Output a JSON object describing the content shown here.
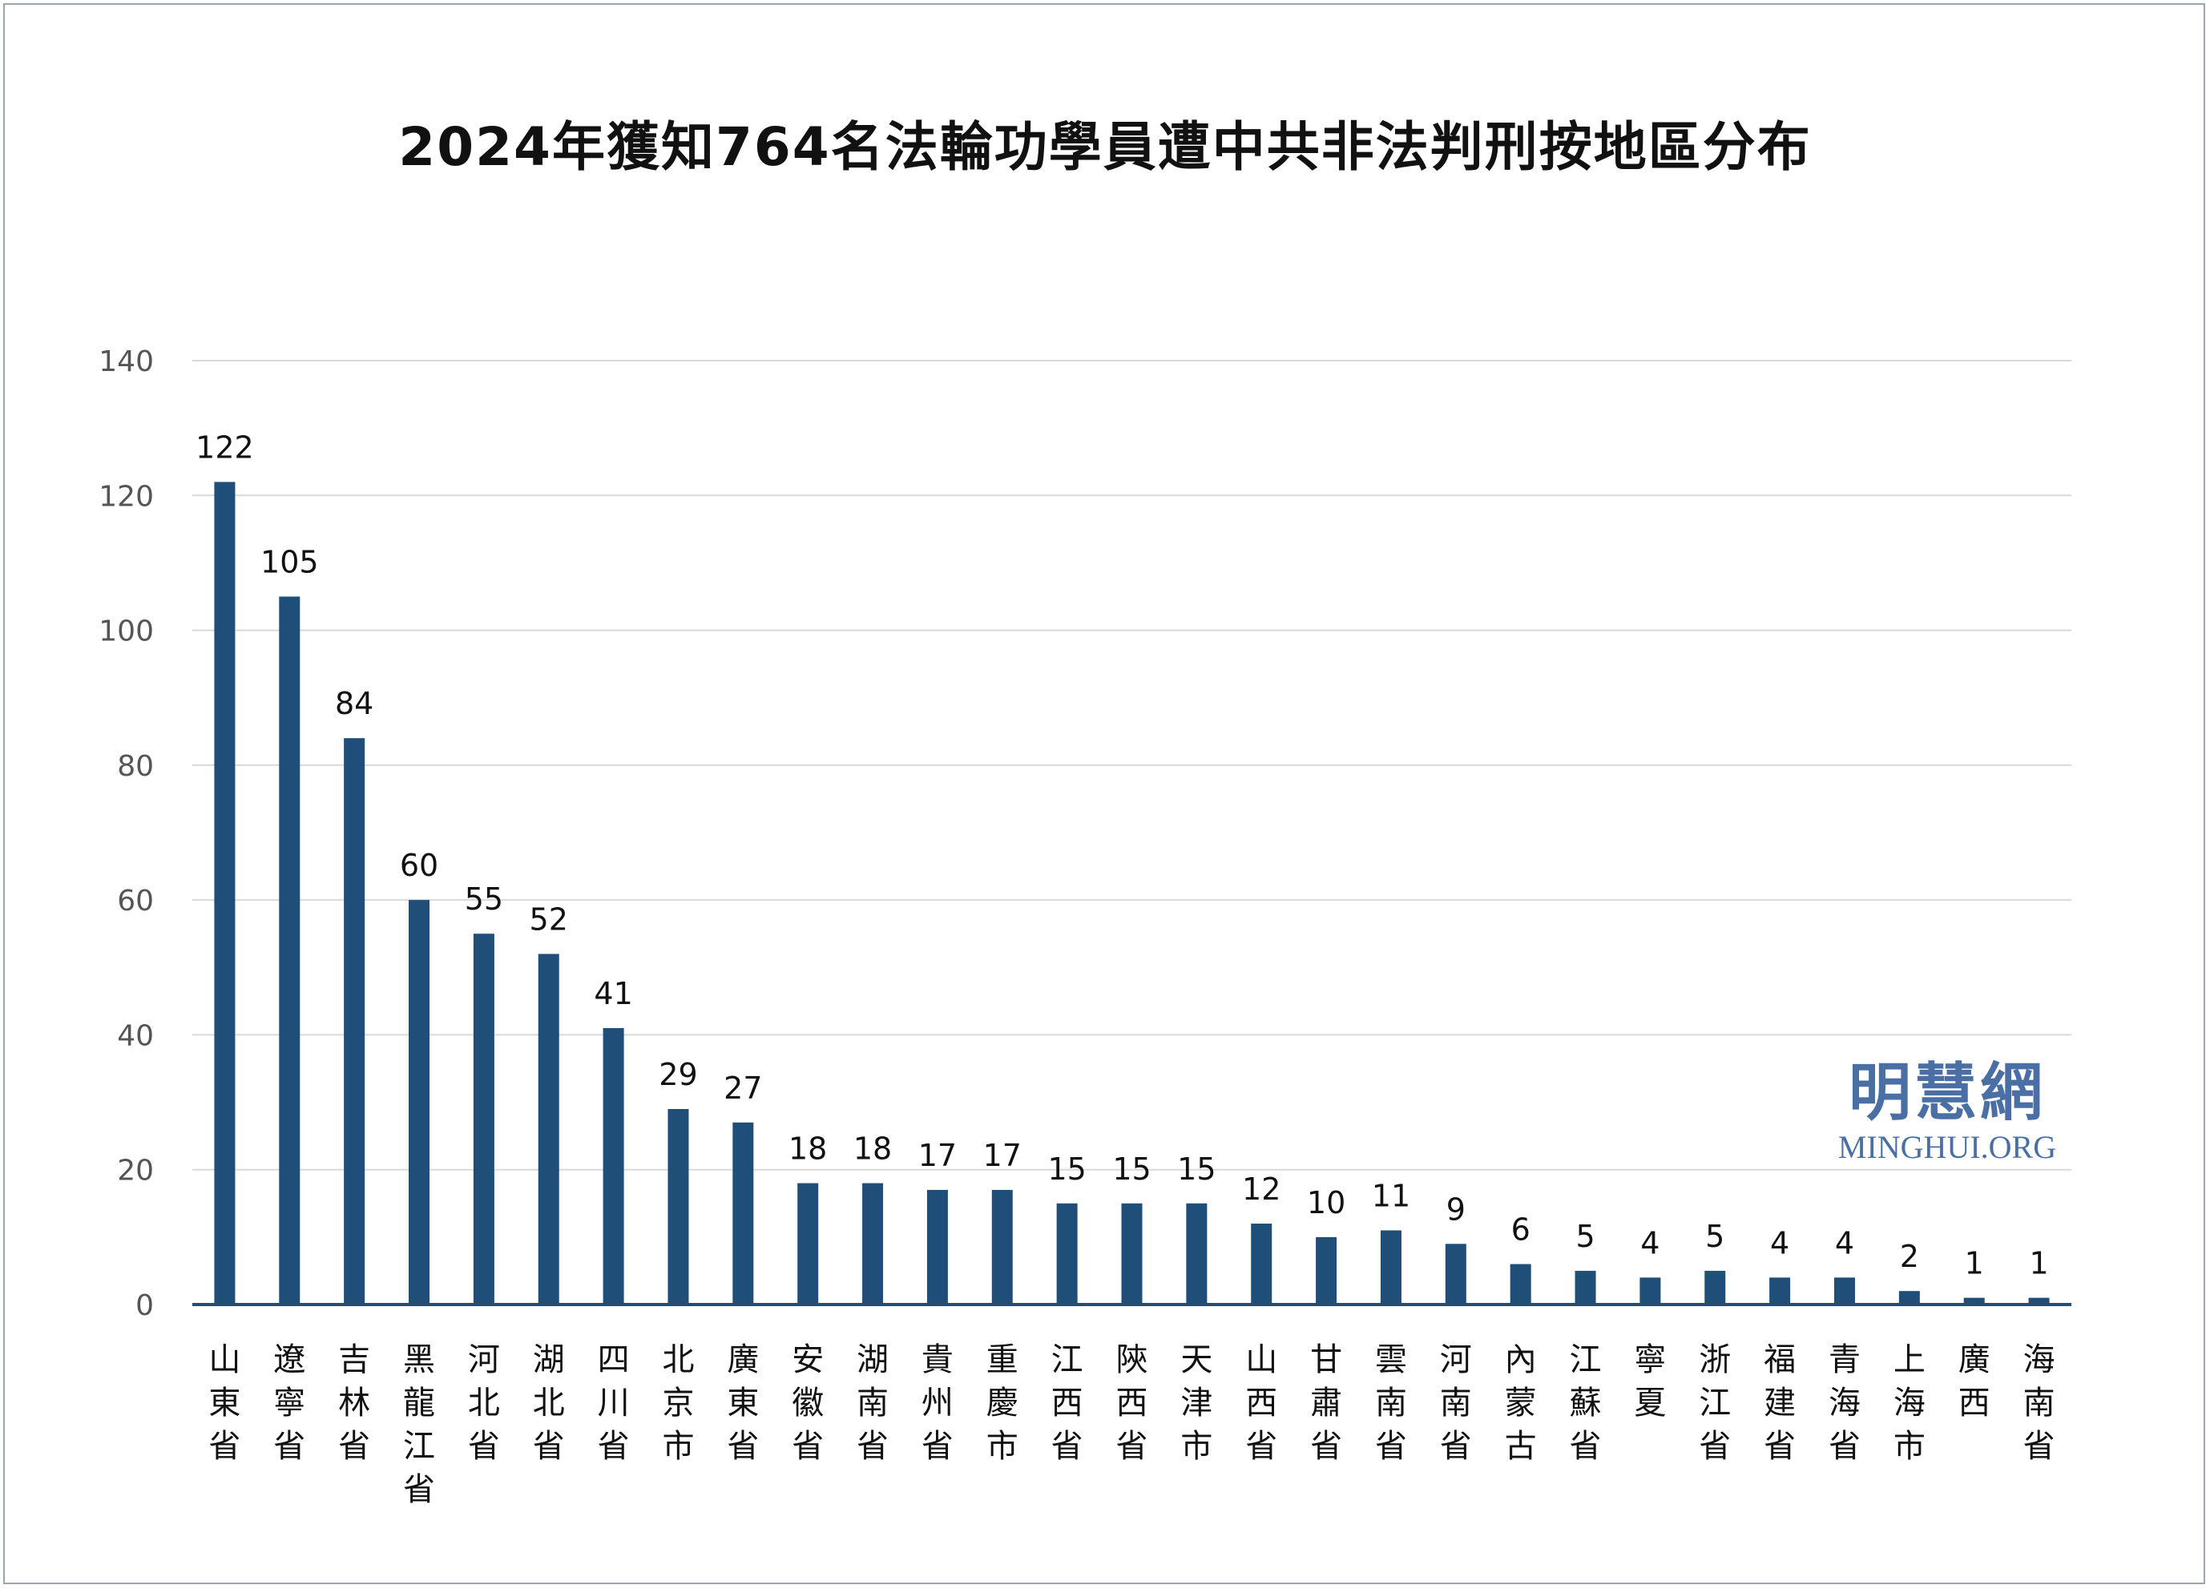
{
  "chart_data": {
    "type": "bar",
    "title": "2024年獲知764名法輪功學員遭中共非法判刑按地區分布",
    "categories": [
      "山東省",
      "遼寧省",
      "吉林省",
      "黑龍江省",
      "河北省",
      "湖北省",
      "四川省",
      "北京市",
      "廣東省",
      "安徽省",
      "湖南省",
      "貴州省",
      "重慶市",
      "江西省",
      "陝西省",
      "天津市",
      "山西省",
      "甘肅省",
      "雲南省",
      "河南省",
      "內蒙古",
      "江蘇省",
      "寧夏",
      "浙江省",
      "福建省",
      "青海省",
      "上海市",
      "廣西",
      "海南省"
    ],
    "values": [
      122,
      105,
      84,
      60,
      55,
      52,
      41,
      29,
      27,
      18,
      18,
      17,
      17,
      15,
      15,
      15,
      12,
      10,
      11,
      9,
      6,
      5,
      4,
      5,
      4,
      4,
      2,
      1,
      1
    ],
    "ylim": [
      0,
      140
    ],
    "yticks": [
      0,
      20,
      40,
      60,
      80,
      100,
      120,
      140
    ],
    "grid": true,
    "bar_color": "#1f4e79",
    "grid_color": "#d9d9d9",
    "legend": "none"
  },
  "watermark": {
    "name_cn": "明慧網",
    "name_en": "MINGHUI.ORG",
    "color": "#4a6fa5"
  }
}
